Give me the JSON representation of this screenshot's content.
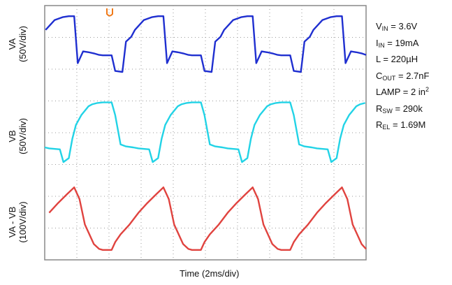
{
  "chart_data": {
    "type": "line",
    "xlabel": "Time (2ms/div)",
    "grid": true,
    "series": [
      {
        "name": "VA",
        "label_top": "VA",
        "label_bottom": "(50V/div)",
        "color": "#1f2fd0",
        "x": [
          0.0,
          0.1,
          0.14,
          0.22,
          0.26,
          0.32,
          0.36,
          0.46,
          0.55,
          0.62,
          0.68,
          0.72,
          0.78,
          0.85,
          0.9,
          0.96,
          1.0
        ],
        "values": [
          -0.4,
          -0.4,
          -1.2,
          -1.25,
          0.3,
          0.55,
          0.9,
          1.4,
          1.55,
          1.6,
          1.6,
          -0.8,
          -0.2,
          -0.25,
          -0.3,
          -0.38,
          -0.4
        ]
      },
      {
        "name": "VB",
        "label_top": "VB",
        "label_bottom": "(50V/div)",
        "color": "#22d3e6",
        "x": [
          0.0,
          0.1,
          0.14,
          0.2,
          0.26,
          0.34,
          0.4,
          0.52,
          0.56,
          0.62,
          0.66,
          0.7,
          0.76,
          0.84,
          0.88,
          0.94,
          1.0
        ],
        "values": [
          1.55,
          1.55,
          0.9,
          -0.6,
          -0.7,
          -0.75,
          -0.8,
          -0.85,
          -1.5,
          -1.3,
          -0.3,
          0.4,
          0.9,
          1.35,
          1.45,
          1.52,
          1.55
        ]
      },
      {
        "name": "VA - VB",
        "label_top": "VA - VB",
        "label_bottom": "(100V/div)",
        "color": "#e0433f",
        "x": [
          0.0,
          0.1,
          0.14,
          0.2,
          0.3,
          0.4,
          0.5,
          0.6,
          0.68,
          0.74,
          0.8,
          0.9,
          0.96,
          1.0
        ],
        "values": [
          -1.6,
          -1.6,
          -1.2,
          -0.8,
          -0.3,
          0.3,
          0.8,
          1.25,
          1.6,
          1.0,
          -0.3,
          -1.3,
          -1.55,
          -1.6
        ]
      }
    ],
    "cycles": 3.6,
    "annotations": [
      "VIN = 3.6V",
      "IIN = 19mA",
      "L = 220µH",
      "COUT = 2.7nF",
      "LAMP = 2 in2",
      "RSW = 290k",
      "REL = 1.69M"
    ]
  },
  "legend": {
    "vin": {
      "sym": "V",
      "sub": "IN",
      "val": " = 3.6V"
    },
    "iin": {
      "sym": "I",
      "sub": "IN",
      "val": " = 19mA"
    },
    "l": {
      "text": "L = 220µH"
    },
    "cout": {
      "sym": "C",
      "sub": "OUT",
      "val": " = 2.7nF"
    },
    "lamp": {
      "pre": "LAMP = 2 in",
      "sup": "2"
    },
    "rsw": {
      "sym": "R",
      "sub": "SW",
      "val": " = 290k"
    },
    "rel": {
      "sym": "R",
      "sub": "EL",
      "val": " = 1.69M"
    }
  },
  "colors": {
    "grid": "#9a9a9a",
    "frame": "#888888",
    "marker": "#f07a1a"
  }
}
